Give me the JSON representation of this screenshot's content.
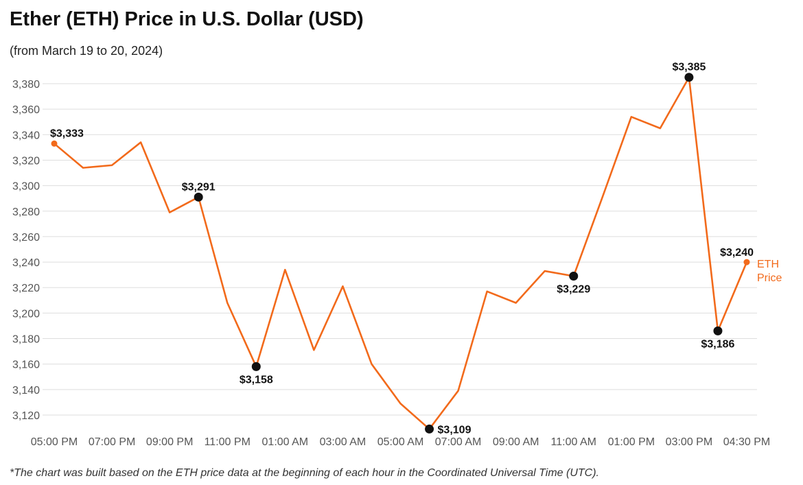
{
  "title": "Ether (ETH) Price in U.S. Dollar (USD)",
  "subtitle": "(from March 19 to 20, 2024)",
  "footnote": "*The chart was built based on the ETH price data at the beginning of each hour in the Coordinated Universal Time (UTC).",
  "colors": {
    "line": "#f26a1b",
    "marker": "#111111",
    "grid": "#dddddd"
  },
  "chart_data": {
    "type": "line",
    "x": [
      "05:00 PM",
      "06:00 PM",
      "07:00 PM",
      "08:00 PM",
      "09:00 PM",
      "10:00 PM",
      "11:00 PM",
      "12:00 AM",
      "01:00 AM",
      "02:00 AM",
      "03:00 AM",
      "04:00 AM",
      "05:00 AM",
      "06:00 AM",
      "07:00 AM",
      "08:00 AM",
      "09:00 AM",
      "10:00 AM",
      "11:00 AM",
      "12:00 PM",
      "01:00 PM",
      "02:00 PM",
      "03:00 PM",
      "04:00 PM",
      "04:30 PM"
    ],
    "x_tick_labels": [
      "05:00 PM",
      "07:00 PM",
      "09:00 PM",
      "11:00 PM",
      "01:00 AM",
      "03:00 AM",
      "05:00 AM",
      "07:00 AM",
      "09:00 AM",
      "11:00 AM",
      "01:00 PM",
      "03:00 PM",
      "04:30 PM"
    ],
    "series": [
      {
        "name": "ETH Price",
        "values": [
          3333,
          3314,
          3316,
          3334,
          3279,
          3291,
          3208,
          3158,
          3234,
          3171,
          3221,
          3160,
          3129,
          3109,
          3139,
          3217,
          3208,
          3233,
          3229,
          3291,
          3354,
          3345,
          3385,
          3186,
          3240
        ]
      }
    ],
    "series_label_lines": [
      "ETH",
      "Price"
    ],
    "annotations": [
      {
        "index": 0,
        "label": "$3,333",
        "position": "above",
        "marker": "orange"
      },
      {
        "index": 5,
        "label": "$3,291",
        "position": "above",
        "marker": "black"
      },
      {
        "index": 7,
        "label": "$3,158",
        "position": "below",
        "marker": "black"
      },
      {
        "index": 13,
        "label": "$3,109",
        "position": "right",
        "marker": "black"
      },
      {
        "index": 18,
        "label": "$3,229",
        "position": "below",
        "marker": "black"
      },
      {
        "index": 22,
        "label": "$3,385",
        "position": "above",
        "marker": "black"
      },
      {
        "index": 23,
        "label": "$3,186",
        "position": "below",
        "marker": "black"
      },
      {
        "index": 24,
        "label": "$3,240",
        "position": "above",
        "marker": "orange"
      }
    ],
    "y_ticks": [
      3120,
      3140,
      3160,
      3180,
      3200,
      3220,
      3240,
      3260,
      3280,
      3300,
      3320,
      3340,
      3360,
      3380
    ],
    "ylim": [
      3100,
      3390
    ],
    "grid": true,
    "xlabel": "",
    "ylabel": ""
  }
}
